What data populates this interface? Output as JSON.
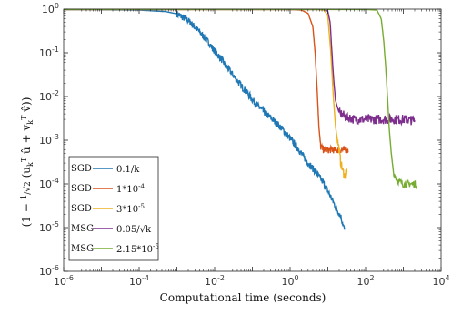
{
  "chart_data": {
    "type": "line",
    "title": "",
    "xlabel": "Computational time (seconds)",
    "ylabel": "(1 − (1/√2)(u_k^T û + v_k^T v̂))",
    "xscale": "log",
    "yscale": "log",
    "xlim": [
      1e-06,
      10000
    ],
    "ylim": [
      1e-06,
      1
    ],
    "grid": false,
    "legend_position": "lower-left",
    "x_ticks": [
      {
        "base": "10",
        "exp": "-6",
        "value": 1e-06
      },
      {
        "base": "10",
        "exp": "-4",
        "value": 0.0001
      },
      {
        "base": "10",
        "exp": "-2",
        "value": 0.01
      },
      {
        "base": "10",
        "exp": "0",
        "value": 1
      },
      {
        "base": "10",
        "exp": "2",
        "value": 100
      },
      {
        "base": "10",
        "exp": "4",
        "value": 10000
      }
    ],
    "y_ticks": [
      {
        "base": "10",
        "exp": "-6",
        "value": 1e-06
      },
      {
        "base": "10",
        "exp": "-5",
        "value": 1e-05
      },
      {
        "base": "10",
        "exp": "-4",
        "value": 0.0001
      },
      {
        "base": "10",
        "exp": "-3",
        "value": 0.001
      },
      {
        "base": "10",
        "exp": "-2",
        "value": 0.01
      },
      {
        "base": "10",
        "exp": "-1",
        "value": 0.1
      },
      {
        "base": "10",
        "exp": "0",
        "value": 1
      }
    ],
    "series": [
      {
        "method": "SGD",
        "name": "0.1/k",
        "color": "#1f77b4",
        "x": [
          1e-06,
          0.0001,
          0.0005,
          0.001,
          0.002,
          0.004,
          0.007,
          0.01,
          0.015,
          0.02,
          0.03,
          0.05,
          0.08,
          0.12,
          0.2,
          0.3,
          0.5,
          0.8,
          1.2,
          2,
          3,
          5,
          8,
          12,
          16,
          22,
          28
        ],
        "y": [
          0.98,
          0.95,
          0.88,
          0.78,
          0.55,
          0.3,
          0.17,
          0.11,
          0.072,
          0.05,
          0.032,
          0.018,
          0.011,
          0.007,
          0.0045,
          0.0033,
          0.0022,
          0.0014,
          0.0009,
          0.0005,
          0.0003,
          0.00018,
          0.0001,
          5e-05,
          3e-05,
          1.8e-05,
          8.5e-06
        ]
      },
      {
        "method": "SGD",
        "name": "1*10^-4",
        "color": "#d95319",
        "x": [
          1e-06,
          0.01,
          1,
          2,
          3,
          4,
          4.6,
          5.2,
          5.8,
          6.5,
          8,
          10,
          14,
          20,
          28,
          35
        ],
        "y": [
          0.98,
          0.98,
          0.98,
          0.95,
          0.8,
          0.4,
          0.1,
          0.015,
          0.002,
          0.0007,
          0.0006,
          0.0006,
          0.0006,
          0.0006,
          0.0006,
          0.0006
        ]
      },
      {
        "method": "SGD",
        "name": "3*10^-5",
        "color": "#edb120",
        "x": [
          1e-06,
          1,
          5,
          8,
          10,
          12,
          14,
          16,
          18,
          20,
          22,
          25,
          28,
          32
        ],
        "y": [
          0.98,
          0.98,
          0.98,
          0.95,
          0.7,
          0.1,
          0.01,
          0.002,
          0.001,
          0.0006,
          0.0003,
          0.0002,
          0.00015,
          0.00022
        ]
      },
      {
        "method": "MSG",
        "name": "0.05/√k",
        "color": "#7e2f8e",
        "x": [
          1e-06,
          1,
          8,
          10,
          11.5,
          12.5,
          14,
          16,
          20,
          30,
          50,
          100,
          300,
          1000,
          2000
        ],
        "y": [
          0.98,
          0.98,
          0.98,
          0.9,
          0.5,
          0.15,
          0.03,
          0.008,
          0.0042,
          0.0035,
          0.003,
          0.003,
          0.003,
          0.003,
          0.0028
        ]
      },
      {
        "method": "MSG",
        "name": "2.15*10^-5",
        "color": "#77ac30",
        "x": [
          1e-06,
          10,
          100,
          200,
          260,
          300,
          340,
          380,
          420,
          480,
          550,
          700,
          1000,
          1500,
          2200
        ],
        "y": [
          0.98,
          0.98,
          0.98,
          0.95,
          0.6,
          0.2,
          0.05,
          0.01,
          0.002,
          0.0005,
          0.00018,
          0.00012,
          0.0001,
          0.0001,
          0.0001
        ]
      }
    ]
  }
}
